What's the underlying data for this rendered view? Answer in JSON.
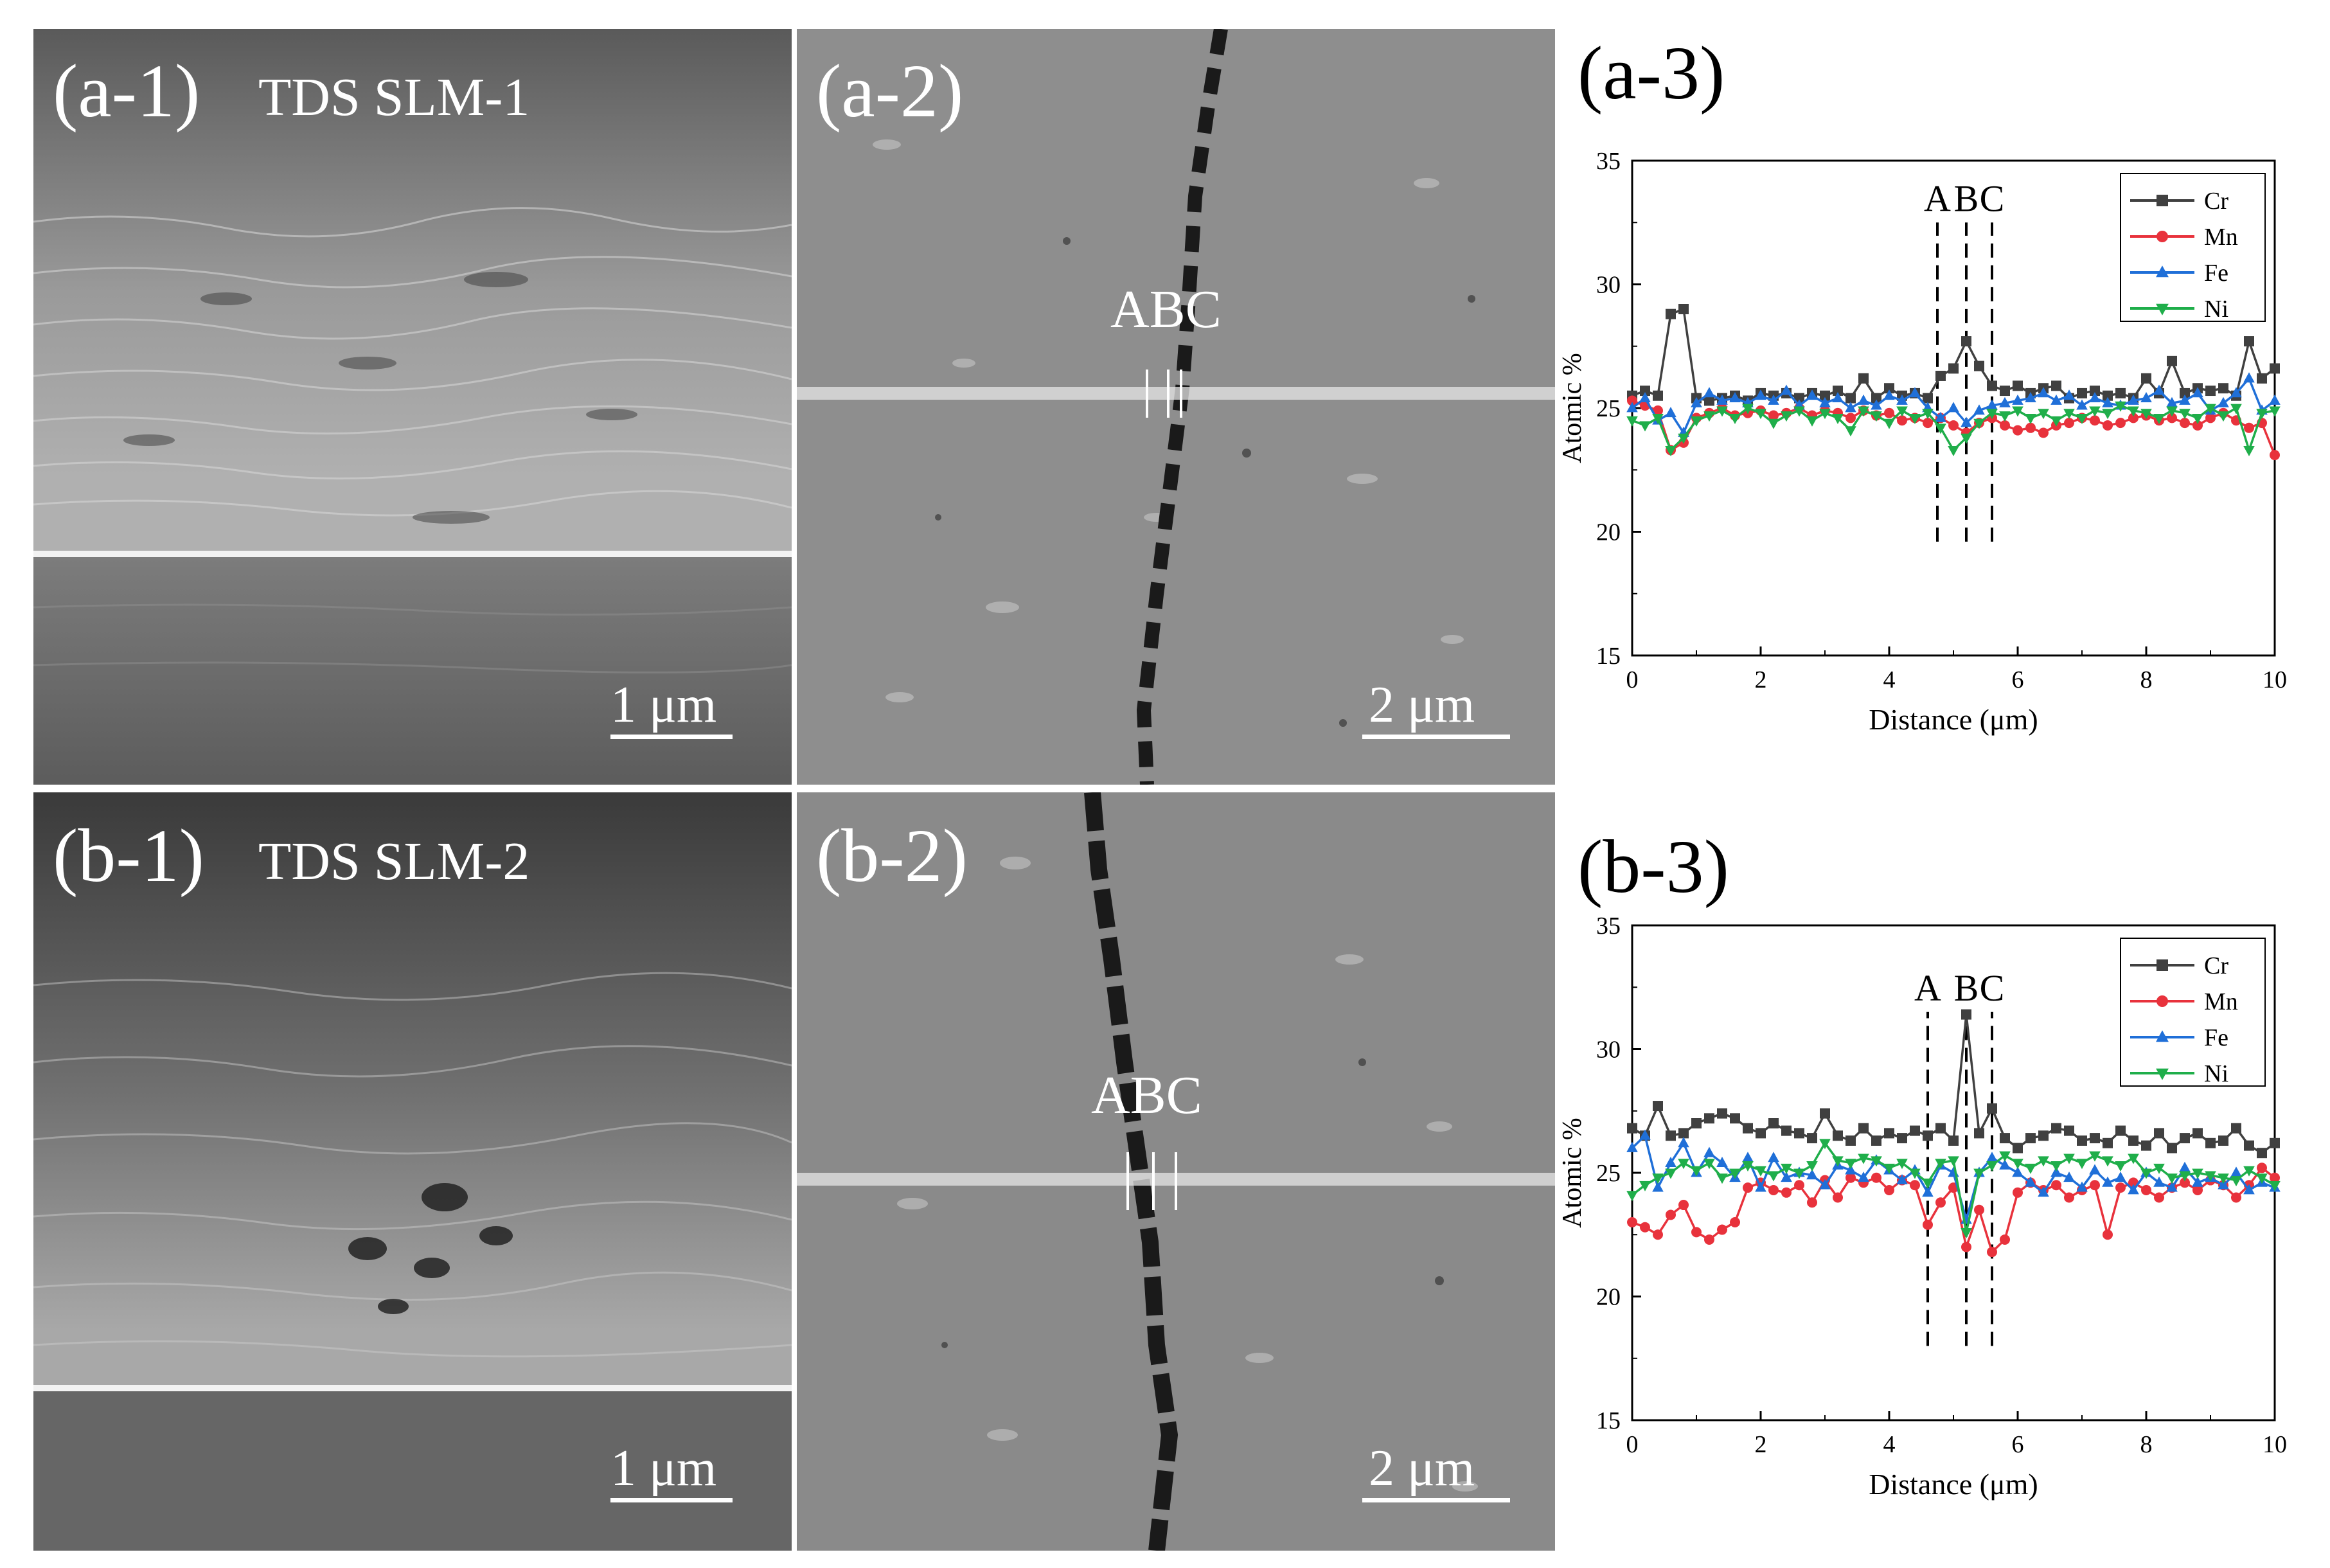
{
  "panels": {
    "a1": {
      "label": "(a-1)",
      "sample": "TDS SLM-1",
      "scale": "1 μm"
    },
    "a2": {
      "label": "(a-2)",
      "markers": "ABC",
      "scale": "2 μm"
    },
    "a3": {
      "label": "(a-3)"
    },
    "b1": {
      "label": "(b-1)",
      "sample": "TDS SLM-2",
      "scale": "1 μm"
    },
    "b2": {
      "label": "(b-2)",
      "markers": "ABC",
      "scale": "2 μm"
    },
    "b3": {
      "label": "(b-3)"
    }
  },
  "chart_data": [
    {
      "type": "line",
      "panel": "(a-3)",
      "xlabel": "Distance (μm)",
      "ylabel": "Atomic %",
      "xlim": [
        0,
        10
      ],
      "ylim": [
        15,
        35
      ],
      "xticks": [
        0,
        2,
        4,
        6,
        8,
        10
      ],
      "yticks": [
        15,
        20,
        25,
        30,
        35
      ],
      "legend_position": "top-right",
      "annotation_labels": [
        "A",
        "B",
        "C"
      ],
      "annotation_lines_x": [
        4.75,
        5.2,
        5.6
      ],
      "annotation_y_range": [
        19.6,
        32.5
      ],
      "series": [
        {
          "name": "Cr",
          "color": "#404040",
          "marker": "square",
          "x": [
            0.0,
            0.2,
            0.4,
            0.6,
            0.8,
            1.0,
            1.2,
            1.4,
            1.6,
            1.8,
            2.0,
            2.2,
            2.4,
            2.6,
            2.8,
            3.0,
            3.2,
            3.4,
            3.6,
            3.8,
            4.0,
            4.2,
            4.4,
            4.6,
            4.8,
            5.0,
            5.2,
            5.4,
            5.6,
            5.8,
            6.0,
            6.2,
            6.4,
            6.6,
            6.8,
            7.0,
            7.2,
            7.4,
            7.6,
            7.8,
            8.0,
            8.2,
            8.4,
            8.6,
            8.8,
            9.0,
            9.2,
            9.4,
            9.6,
            9.8,
            10.0
          ],
          "values": [
            25.5,
            25.7,
            25.5,
            28.8,
            29.0,
            25.4,
            25.3,
            25.4,
            25.5,
            25.3,
            25.6,
            25.5,
            25.6,
            25.4,
            25.6,
            25.5,
            25.7,
            25.4,
            26.2,
            25.4,
            25.8,
            25.5,
            25.6,
            25.4,
            26.3,
            26.6,
            27.7,
            26.7,
            25.9,
            25.7,
            25.9,
            25.6,
            25.8,
            25.9,
            25.4,
            25.6,
            25.7,
            25.5,
            25.6,
            25.4,
            26.2,
            25.6,
            26.9,
            25.6,
            25.8,
            25.7,
            25.8,
            25.5,
            27.7,
            26.2,
            26.6
          ]
        },
        {
          "name": "Mn",
          "color": "#e8323c",
          "marker": "circle",
          "x": [
            0.0,
            0.2,
            0.4,
            0.6,
            0.8,
            1.0,
            1.2,
            1.4,
            1.6,
            1.8,
            2.0,
            2.2,
            2.4,
            2.6,
            2.8,
            3.0,
            3.2,
            3.4,
            3.6,
            3.8,
            4.0,
            4.2,
            4.4,
            4.6,
            4.8,
            5.0,
            5.2,
            5.4,
            5.6,
            5.8,
            6.0,
            6.2,
            6.4,
            6.6,
            6.8,
            7.0,
            7.2,
            7.4,
            7.6,
            7.8,
            8.0,
            8.2,
            8.4,
            8.6,
            8.8,
            9.0,
            9.2,
            9.4,
            9.6,
            9.8,
            10.0
          ],
          "values": [
            25.3,
            25.1,
            24.9,
            23.3,
            23.6,
            24.6,
            24.8,
            25.0,
            24.7,
            24.8,
            24.9,
            24.7,
            24.8,
            25.0,
            24.7,
            24.9,
            24.8,
            24.6,
            24.9,
            24.7,
            24.8,
            24.5,
            24.6,
            24.4,
            24.6,
            24.3,
            24.0,
            24.4,
            24.6,
            24.3,
            24.1,
            24.2,
            24.0,
            24.3,
            24.4,
            24.6,
            24.5,
            24.3,
            24.4,
            24.6,
            24.7,
            24.5,
            24.6,
            24.4,
            24.3,
            24.6,
            24.8,
            24.5,
            24.2,
            24.4,
            23.1
          ]
        },
        {
          "name": "Fe",
          "color": "#1f6fd8",
          "marker": "triangle-up",
          "x": [
            0.0,
            0.2,
            0.4,
            0.6,
            0.8,
            1.0,
            1.2,
            1.4,
            1.6,
            1.8,
            2.0,
            2.2,
            2.4,
            2.6,
            2.8,
            3.0,
            3.2,
            3.4,
            3.6,
            3.8,
            4.0,
            4.2,
            4.4,
            4.6,
            4.8,
            5.0,
            5.2,
            5.4,
            5.6,
            5.8,
            6.0,
            6.2,
            6.4,
            6.6,
            6.8,
            7.0,
            7.2,
            7.4,
            7.6,
            7.8,
            8.0,
            8.2,
            8.4,
            8.6,
            8.8,
            9.0,
            9.2,
            9.4,
            9.6,
            9.8,
            10.0
          ],
          "values": [
            25.0,
            25.4,
            24.5,
            24.8,
            24.0,
            25.2,
            25.6,
            25.3,
            25.4,
            25.2,
            25.5,
            25.3,
            25.7,
            25.1,
            25.5,
            25.2,
            25.4,
            25.0,
            25.3,
            25.1,
            25.5,
            25.3,
            25.6,
            25.0,
            24.6,
            25.0,
            24.4,
            24.9,
            25.1,
            25.2,
            25.3,
            25.4,
            25.6,
            25.3,
            25.5,
            25.1,
            25.4,
            25.2,
            25.1,
            25.3,
            25.4,
            25.7,
            25.2,
            25.3,
            25.6,
            24.9,
            25.2,
            25.6,
            26.2,
            24.9,
            25.3
          ]
        },
        {
          "name": "Ni",
          "color": "#1fae4a",
          "marker": "triangle-down",
          "x": [
            0.0,
            0.2,
            0.4,
            0.6,
            0.8,
            1.0,
            1.2,
            1.4,
            1.6,
            1.8,
            2.0,
            2.2,
            2.4,
            2.6,
            2.8,
            3.0,
            3.2,
            3.4,
            3.6,
            3.8,
            4.0,
            4.2,
            4.4,
            4.6,
            4.8,
            5.0,
            5.2,
            5.4,
            5.6,
            5.8,
            6.0,
            6.2,
            6.4,
            6.6,
            6.8,
            7.0,
            7.2,
            7.4,
            7.6,
            7.8,
            8.0,
            8.2,
            8.4,
            8.6,
            8.8,
            9.0,
            9.2,
            9.4,
            9.6,
            9.8,
            10.0
          ],
          "values": [
            24.5,
            24.3,
            24.6,
            23.3,
            23.8,
            24.5,
            24.7,
            24.9,
            24.6,
            25.0,
            24.8,
            24.4,
            24.7,
            24.9,
            24.5,
            24.8,
            24.6,
            24.1,
            24.9,
            24.7,
            24.4,
            24.9,
            24.6,
            24.8,
            24.2,
            23.3,
            23.8,
            24.4,
            24.8,
            24.7,
            24.9,
            24.6,
            24.8,
            24.5,
            24.8,
            24.6,
            24.9,
            24.8,
            25.1,
            24.9,
            24.8,
            24.6,
            24.9,
            24.8,
            24.6,
            25.0,
            24.7,
            25.0,
            23.3,
            24.8,
            24.9
          ]
        }
      ]
    },
    {
      "type": "line",
      "panel": "(b-3)",
      "xlabel": "Distance (μm)",
      "ylabel": "Atomic %",
      "xlim": [
        0,
        10
      ],
      "ylim": [
        15,
        35
      ],
      "xticks": [
        0,
        2,
        4,
        6,
        8,
        10
      ],
      "yticks": [
        15,
        20,
        25,
        30,
        35
      ],
      "legend_position": "top-right",
      "annotation_labels": [
        "A",
        "B",
        "C"
      ],
      "annotation_lines_x": [
        4.6,
        5.2,
        5.6
      ],
      "annotation_y_range": [
        18.0,
        31.5
      ],
      "series": [
        {
          "name": "Cr",
          "color": "#404040",
          "marker": "square",
          "x": [
            0.0,
            0.2,
            0.4,
            0.6,
            0.8,
            1.0,
            1.2,
            1.4,
            1.6,
            1.8,
            2.0,
            2.2,
            2.4,
            2.6,
            2.8,
            3.0,
            3.2,
            3.4,
            3.6,
            3.8,
            4.0,
            4.2,
            4.4,
            4.6,
            4.8,
            5.0,
            5.2,
            5.4,
            5.6,
            5.8,
            6.0,
            6.2,
            6.4,
            6.6,
            6.8,
            7.0,
            7.2,
            7.4,
            7.6,
            7.8,
            8.0,
            8.2,
            8.4,
            8.6,
            8.8,
            9.0,
            9.2,
            9.4,
            9.6,
            9.8,
            10.0
          ],
          "values": [
            26.8,
            26.5,
            27.7,
            26.5,
            26.6,
            27.0,
            27.2,
            27.4,
            27.2,
            26.8,
            26.6,
            27.0,
            26.7,
            26.6,
            26.4,
            27.4,
            26.5,
            26.3,
            26.8,
            26.3,
            26.6,
            26.4,
            26.7,
            26.5,
            26.8,
            26.3,
            31.4,
            26.6,
            27.6,
            26.4,
            26.0,
            26.4,
            26.5,
            26.8,
            26.7,
            26.3,
            26.4,
            26.2,
            26.7,
            26.3,
            26.1,
            26.6,
            26.0,
            26.4,
            26.6,
            26.2,
            26.3,
            26.8,
            26.1,
            25.8,
            26.2
          ]
        },
        {
          "name": "Mn",
          "color": "#e8323c",
          "marker": "circle",
          "x": [
            0.0,
            0.2,
            0.4,
            0.6,
            0.8,
            1.0,
            1.2,
            1.4,
            1.6,
            1.8,
            2.0,
            2.2,
            2.4,
            2.6,
            2.8,
            3.0,
            3.2,
            3.4,
            3.6,
            3.8,
            4.0,
            4.2,
            4.4,
            4.6,
            4.8,
            5.0,
            5.2,
            5.4,
            5.6,
            5.8,
            6.0,
            6.2,
            6.4,
            6.6,
            6.8,
            7.0,
            7.2,
            7.4,
            7.6,
            7.8,
            8.0,
            8.2,
            8.4,
            8.6,
            8.8,
            9.0,
            9.2,
            9.4,
            9.6,
            9.8,
            10.0
          ],
          "values": [
            23.0,
            22.8,
            22.5,
            23.3,
            23.7,
            22.6,
            22.3,
            22.7,
            23.0,
            24.4,
            24.6,
            24.3,
            24.2,
            24.5,
            23.8,
            24.7,
            24.0,
            24.8,
            24.6,
            24.8,
            24.3,
            24.7,
            24.5,
            22.9,
            23.8,
            24.4,
            22.0,
            23.5,
            21.8,
            22.3,
            24.2,
            24.6,
            24.3,
            24.5,
            24.0,
            24.3,
            24.5,
            22.5,
            24.4,
            24.6,
            24.3,
            24.0,
            24.4,
            24.6,
            24.3,
            24.7,
            24.5,
            24.0,
            24.5,
            25.2,
            24.8
          ]
        },
        {
          "name": "Fe",
          "color": "#1f6fd8",
          "marker": "triangle-up",
          "x": [
            0.0,
            0.2,
            0.4,
            0.6,
            0.8,
            1.0,
            1.2,
            1.4,
            1.6,
            1.8,
            2.0,
            2.2,
            2.4,
            2.6,
            2.8,
            3.0,
            3.2,
            3.4,
            3.6,
            3.8,
            4.0,
            4.2,
            4.4,
            4.6,
            4.8,
            5.0,
            5.2,
            5.4,
            5.6,
            5.8,
            6.0,
            6.2,
            6.4,
            6.6,
            6.8,
            7.0,
            7.2,
            7.4,
            7.6,
            7.8,
            8.0,
            8.2,
            8.4,
            8.6,
            8.8,
            9.0,
            9.2,
            9.4,
            9.6,
            9.8,
            10.0
          ],
          "values": [
            26.0,
            26.5,
            24.4,
            25.4,
            26.2,
            25.0,
            25.8,
            25.4,
            24.8,
            25.6,
            24.4,
            25.6,
            24.8,
            25.0,
            24.9,
            24.5,
            25.3,
            25.1,
            24.8,
            25.5,
            25.1,
            24.7,
            25.1,
            24.2,
            25.3,
            25.0,
            23.1,
            25.0,
            25.6,
            25.3,
            25.0,
            24.6,
            24.2,
            25.0,
            24.8,
            24.4,
            25.1,
            24.6,
            24.8,
            24.3,
            25.0,
            24.6,
            24.4,
            25.2,
            24.6,
            24.8,
            24.5,
            25.0,
            24.3,
            24.6,
            24.4
          ]
        },
        {
          "name": "Ni",
          "color": "#1fae4a",
          "marker": "triangle-down",
          "x": [
            0.0,
            0.2,
            0.4,
            0.6,
            0.8,
            1.0,
            1.2,
            1.4,
            1.6,
            1.8,
            2.0,
            2.2,
            2.4,
            2.6,
            2.8,
            3.0,
            3.2,
            3.4,
            3.6,
            3.8,
            4.0,
            4.2,
            4.4,
            4.6,
            4.8,
            5.0,
            5.2,
            5.4,
            5.6,
            5.8,
            6.0,
            6.2,
            6.4,
            6.6,
            6.8,
            7.0,
            7.2,
            7.4,
            7.6,
            7.8,
            8.0,
            8.2,
            8.4,
            8.6,
            8.8,
            9.0,
            9.2,
            9.4,
            9.6,
            9.8,
            10.0
          ],
          "values": [
            24.1,
            24.5,
            24.8,
            25.0,
            25.4,
            25.1,
            25.4,
            24.8,
            25.0,
            25.3,
            25.1,
            24.9,
            25.2,
            25.0,
            25.3,
            26.2,
            25.5,
            25.4,
            25.6,
            25.5,
            25.2,
            25.4,
            25.0,
            24.6,
            25.4,
            25.5,
            22.6,
            25.0,
            25.3,
            25.7,
            25.4,
            25.2,
            25.5,
            25.3,
            25.6,
            25.4,
            25.7,
            25.5,
            25.3,
            25.6,
            25.0,
            25.2,
            24.8,
            24.9,
            25.0,
            24.9,
            24.8,
            24.7,
            25.1,
            24.8,
            24.5
          ]
        }
      ]
    }
  ]
}
